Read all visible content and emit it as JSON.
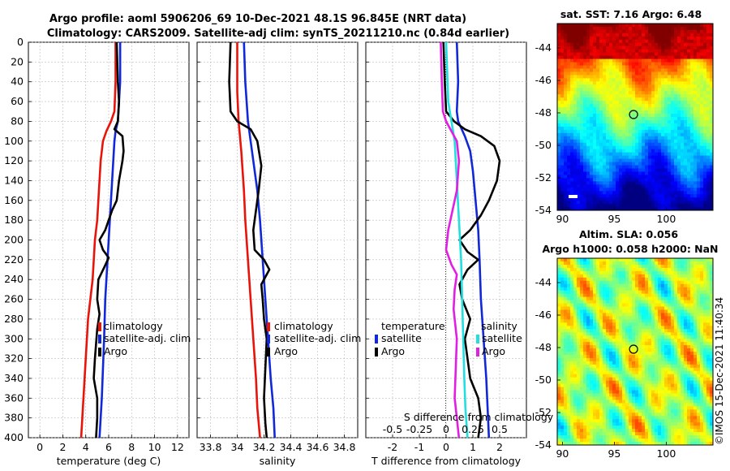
{
  "title": {
    "line1": "Argo profile: aoml 5906206_69 10-Dec-2021 48.1S 96.845E (NRT data)",
    "line2": "Climatology: CARS2009. Satellite-adj clim: synTS_20211210.nc (0.84d earlier)"
  },
  "footer": {
    "stamp": "©IMOS 15-Dec-2021 11:40:34"
  },
  "colors": {
    "climatology": "#e8140a",
    "satellite": "#1028d8",
    "argo": "#000000",
    "salinity_satellite": "#22dede",
    "salinity_argo": "#e21ee2"
  },
  "chart_data": [
    {
      "type": "line",
      "title": "",
      "xlabel": "temperature (deg C)",
      "ylabel": "",
      "xlim": [
        -1,
        13
      ],
      "ylim": [
        400,
        0
      ],
      "xticks": [
        "0",
        "2",
        "4",
        "6",
        "8",
        "10",
        "12"
      ],
      "yticks": [
        "0",
        "20",
        "40",
        "60",
        "80",
        "100",
        "120",
        "140",
        "160",
        "180",
        "200",
        "220",
        "240",
        "260",
        "280",
        "300",
        "320",
        "340",
        "360",
        "380",
        "400"
      ],
      "grid": true,
      "legend": {
        "position": "lower-right",
        "entries": [
          "climatology",
          "satellite-adj. clim",
          "Argo"
        ]
      },
      "series": [
        {
          "name": "climatology",
          "color": "#e8140a",
          "points": [
            [
              6.6,
              0
            ],
            [
              6.6,
              40
            ],
            [
              6.5,
              70
            ],
            [
              6.2,
              80
            ],
            [
              5.8,
              90
            ],
            [
              5.5,
              100
            ],
            [
              5.3,
              120
            ],
            [
              5.2,
              140
            ],
            [
              5.0,
              180
            ],
            [
              4.8,
              200
            ],
            [
              4.6,
              240
            ],
            [
              4.4,
              260
            ],
            [
              4.2,
              280
            ],
            [
              4.0,
              320
            ],
            [
              3.8,
              360
            ],
            [
              3.6,
              400
            ]
          ]
        },
        {
          "name": "satellite-adj. clim",
          "color": "#1028d8",
          "points": [
            [
              7.0,
              0
            ],
            [
              7.0,
              40
            ],
            [
              6.9,
              60
            ],
            [
              6.8,
              80
            ],
            [
              6.6,
              90
            ],
            [
              6.5,
              100
            ],
            [
              6.3,
              140
            ],
            [
              6.2,
              160
            ],
            [
              6.1,
              180
            ],
            [
              6.0,
              200
            ],
            [
              5.9,
              220
            ],
            [
              5.8,
              240
            ],
            [
              5.7,
              260
            ],
            [
              5.6,
              300
            ],
            [
              5.4,
              360
            ],
            [
              5.2,
              400
            ]
          ]
        },
        {
          "name": "Argo",
          "color": "#000000",
          "points": [
            [
              6.7,
              0
            ],
            [
              6.8,
              40
            ],
            [
              6.9,
              60
            ],
            [
              6.8,
              80
            ],
            [
              6.5,
              88
            ],
            [
              7.2,
              95
            ],
            [
              7.3,
              110
            ],
            [
              7.2,
              120
            ],
            [
              6.9,
              140
            ],
            [
              6.7,
              160
            ],
            [
              6.3,
              170
            ],
            [
              5.7,
              190
            ],
            [
              5.2,
              200
            ],
            [
              5.5,
              210
            ],
            [
              6.0,
              218
            ],
            [
              5.6,
              228
            ],
            [
              5.1,
              240
            ],
            [
              5.0,
              260
            ],
            [
              5.2,
              275
            ],
            [
              5.0,
              290
            ],
            [
              4.8,
              320
            ],
            [
              4.7,
              340
            ],
            [
              5.0,
              360
            ],
            [
              5.0,
              380
            ],
            [
              4.9,
              400
            ]
          ]
        }
      ]
    },
    {
      "type": "line",
      "title": "",
      "xlabel": "salinity",
      "ylabel": "",
      "xlim": [
        33.7,
        34.9
      ],
      "ylim": [
        400,
        0
      ],
      "xticks": [
        "33.8",
        "34",
        "34.2",
        "34.4",
        "34.6",
        "34.8"
      ],
      "grid": true,
      "legend": {
        "position": "lower-right",
        "entries": [
          "climatology",
          "satellite-adj. clim",
          "Argo"
        ]
      },
      "series": [
        {
          "name": "climatology",
          "color": "#e8140a",
          "points": [
            [
              34.0,
              0
            ],
            [
              34.0,
              50
            ],
            [
              34.01,
              80
            ],
            [
              34.03,
              110
            ],
            [
              34.05,
              150
            ],
            [
              34.06,
              180
            ],
            [
              34.08,
              220
            ],
            [
              34.1,
              260
            ],
            [
              34.12,
              300
            ],
            [
              34.14,
              340
            ],
            [
              34.15,
              370
            ],
            [
              34.17,
              400
            ]
          ]
        },
        {
          "name": "satellite-adj. clim",
          "color": "#1028d8",
          "points": [
            [
              34.05,
              0
            ],
            [
              34.06,
              40
            ],
            [
              34.08,
              80
            ],
            [
              34.1,
              100
            ],
            [
              34.12,
              120
            ],
            [
              34.15,
              150
            ],
            [
              34.17,
              180
            ],
            [
              34.19,
              220
            ],
            [
              34.21,
              260
            ],
            [
              34.23,
              300
            ],
            [
              34.25,
              340
            ],
            [
              34.27,
              370
            ],
            [
              34.28,
              400
            ]
          ]
        },
        {
          "name": "Argo",
          "color": "#000000",
          "points": [
            [
              33.95,
              0
            ],
            [
              33.94,
              40
            ],
            [
              33.95,
              70
            ],
            [
              34.0,
              80
            ],
            [
              34.1,
              88
            ],
            [
              34.15,
              100
            ],
            [
              34.18,
              125
            ],
            [
              34.16,
              150
            ],
            [
              34.14,
              170
            ],
            [
              34.12,
              190
            ],
            [
              34.13,
              210
            ],
            [
              34.2,
              220
            ],
            [
              34.24,
              230
            ],
            [
              34.18,
              245
            ],
            [
              34.19,
              260
            ],
            [
              34.2,
              280
            ],
            [
              34.22,
              300
            ],
            [
              34.21,
              330
            ],
            [
              34.2,
              360
            ],
            [
              34.21,
              385
            ],
            [
              34.22,
              400
            ]
          ]
        }
      ]
    },
    {
      "type": "line",
      "title": "",
      "xlabel": "T difference from climatology",
      "ylabel": "",
      "xlim": [
        -3,
        3
      ],
      "ylim": [
        400,
        0
      ],
      "xticks": [
        "-2",
        "-1",
        "0",
        "1",
        "2"
      ],
      "secondary_xlabel": "S difference from climatology",
      "secondary_xticks": [
        "-0.5",
        "-0.25",
        "0",
        "0.25",
        "0.5"
      ],
      "grid": true,
      "legend": {
        "position": "lower",
        "temperature_heading": "temperature",
        "salinity_heading": "salinity",
        "temperature_entries": [
          "satellite",
          "Argo"
        ],
        "salinity_entries": [
          "satellite",
          "Argo"
        ]
      },
      "series": [
        {
          "name": "T satellite",
          "color": "#1028d8",
          "points": [
            [
              0.4,
              0
            ],
            [
              0.45,
              40
            ],
            [
              0.4,
              70
            ],
            [
              0.45,
              80
            ],
            [
              0.7,
              95
            ],
            [
              0.9,
              110
            ],
            [
              1.0,
              130
            ],
            [
              1.1,
              160
            ],
            [
              1.2,
              190
            ],
            [
              1.25,
              220
            ],
            [
              1.3,
              260
            ],
            [
              1.4,
              300
            ],
            [
              1.5,
              340
            ],
            [
              1.55,
              370
            ],
            [
              1.6,
              400
            ]
          ]
        },
        {
          "name": "T Argo",
          "color": "#000000",
          "points": [
            [
              -0.1,
              0
            ],
            [
              -0.05,
              40
            ],
            [
              0.0,
              70
            ],
            [
              0.3,
              80
            ],
            [
              0.7,
              88
            ],
            [
              1.3,
              95
            ],
            [
              1.8,
              105
            ],
            [
              2.0,
              120
            ],
            [
              1.9,
              140
            ],
            [
              1.6,
              160
            ],
            [
              1.3,
              175
            ],
            [
              0.9,
              190
            ],
            [
              0.5,
              200
            ],
            [
              0.8,
              212
            ],
            [
              1.2,
              220
            ],
            [
              0.8,
              230
            ],
            [
              0.5,
              245
            ],
            [
              0.6,
              260
            ],
            [
              0.9,
              280
            ],
            [
              0.7,
              300
            ],
            [
              0.8,
              320
            ],
            [
              0.9,
              340
            ],
            [
              1.2,
              360
            ],
            [
              1.3,
              380
            ],
            [
              1.2,
              400
            ]
          ]
        },
        {
          "name": "S satellite",
          "color": "#22dede",
          "points": [
            [
              0.0,
              0
            ],
            [
              0.02,
              60
            ],
            [
              0.05,
              80
            ],
            [
              0.08,
              100
            ],
            [
              0.1,
              140
            ],
            [
              0.12,
              180
            ],
            [
              0.14,
              220
            ],
            [
              0.15,
              260
            ],
            [
              0.16,
              300
            ],
            [
              0.17,
              340
            ],
            [
              0.18,
              370
            ],
            [
              0.2,
              400
            ]
          ]
        },
        {
          "name": "S Argo",
          "color": "#e21ee2",
          "points": [
            [
              -0.05,
              0
            ],
            [
              -0.04,
              40
            ],
            [
              -0.03,
              70
            ],
            [
              0.0,
              80
            ],
            [
              0.05,
              90
            ],
            [
              0.1,
              100
            ],
            [
              0.12,
              120
            ],
            [
              0.1,
              150
            ],
            [
              0.06,
              170
            ],
            [
              0.02,
              190
            ],
            [
              0.0,
              210
            ],
            [
              0.05,
              225
            ],
            [
              0.1,
              235
            ],
            [
              0.08,
              250
            ],
            [
              0.07,
              270
            ],
            [
              0.1,
              300
            ],
            [
              0.09,
              330
            ],
            [
              0.08,
              360
            ],
            [
              0.1,
              380
            ],
            [
              0.12,
              400
            ]
          ]
        }
      ]
    },
    {
      "type": "heatmap",
      "title": "sat. SST: 7.16 Argo: 6.48",
      "xlim": [
        89.5,
        104.5
      ],
      "ylim": [
        -54,
        -42.5
      ],
      "xticks": [
        "90",
        "95",
        "100"
      ],
      "yticks": [
        "-44",
        "-46",
        "-48",
        "-50",
        "-52",
        "-54"
      ],
      "marker": {
        "lon": 96.85,
        "lat": -48.1
      },
      "colormap": "jet"
    },
    {
      "type": "heatmap",
      "title": "Altim. SLA: 0.056",
      "subtitle": "Argo h1000: 0.058 h2000: NaN",
      "xlim": [
        89.5,
        104.5
      ],
      "ylim": [
        -54,
        -42.5
      ],
      "xticks": [
        "90",
        "95",
        "100"
      ],
      "yticks": [
        "-44",
        "-46",
        "-48",
        "-50",
        "-52",
        "-54"
      ],
      "marker": {
        "lon": 96.85,
        "lat": -48.1
      },
      "colormap": "jet"
    }
  ]
}
